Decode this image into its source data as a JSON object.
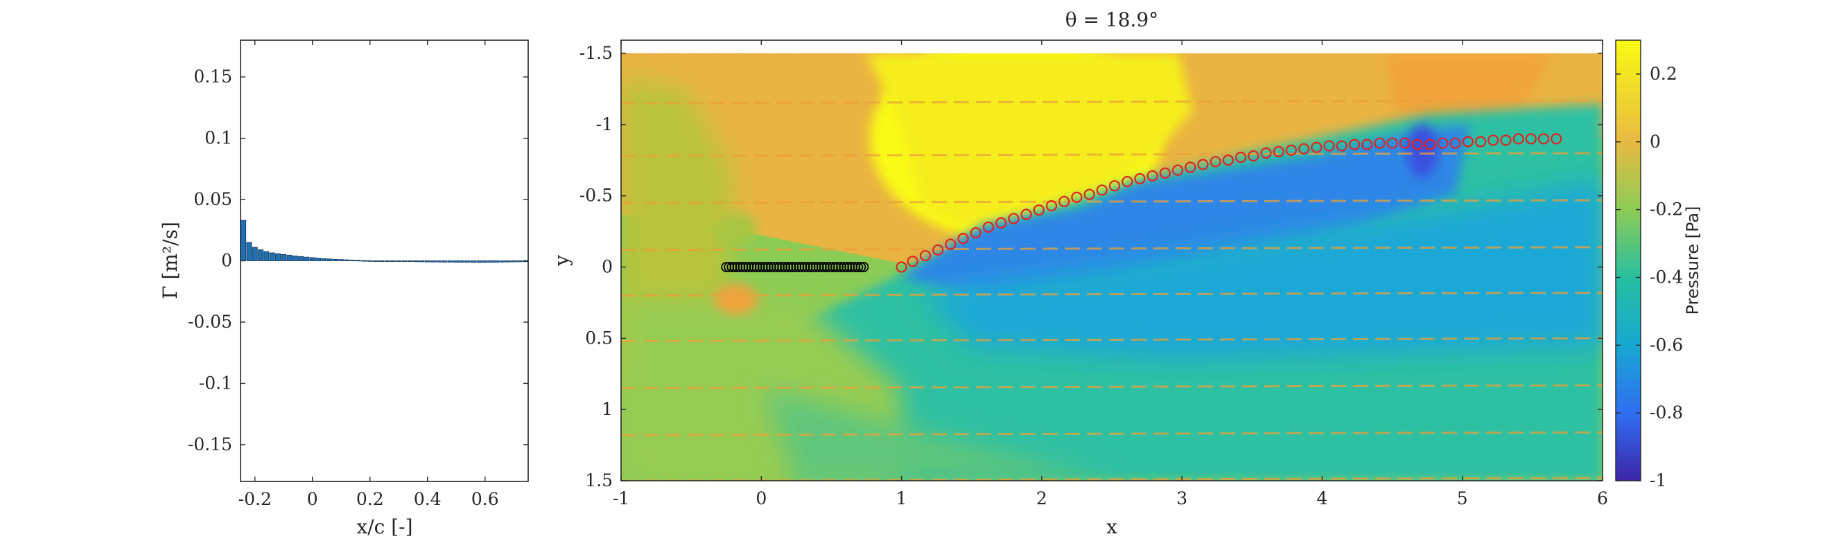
{
  "chart_data": [
    {
      "type": "bar",
      "xlabel": "x/c [-]",
      "ylabel": "Γ [m²/s]",
      "xlim": [
        -0.25,
        0.75
      ],
      "ylim": [
        -0.18,
        0.18
      ],
      "xticks": [
        "-0.2",
        "0",
        "0.2",
        "0.4",
        "0.6"
      ],
      "xtick_values": [
        -0.2,
        0,
        0.2,
        0.4,
        0.6
      ],
      "yticks": [
        "-0.15",
        "-0.1",
        "-0.05",
        "0",
        "0.05",
        "0.1",
        "0.15"
      ],
      "ytick_values": [
        -0.15,
        -0.1,
        -0.05,
        0,
        0.05,
        0.1,
        0.15
      ],
      "bar_color": "#1f6fb3",
      "x": [
        -0.24,
        -0.22,
        -0.2,
        -0.18,
        -0.16,
        -0.14,
        -0.12,
        -0.1,
        -0.08,
        -0.06,
        -0.04,
        -0.02,
        0.0,
        0.02,
        0.04,
        0.06,
        0.08,
        0.1,
        0.12,
        0.14,
        0.16,
        0.18,
        0.2,
        0.22,
        0.24,
        0.26,
        0.28,
        0.3,
        0.32,
        0.34,
        0.36,
        0.38,
        0.4,
        0.42,
        0.44,
        0.46,
        0.48,
        0.5,
        0.52,
        0.54,
        0.56,
        0.58,
        0.6,
        0.62,
        0.64,
        0.66,
        0.68,
        0.7,
        0.72,
        0.74
      ],
      "values": [
        0.033,
        0.015,
        0.011,
        0.009,
        0.0075,
        0.0065,
        0.0058,
        0.0052,
        0.0046,
        0.004,
        0.0035,
        0.003,
        0.0026,
        0.0022,
        0.0018,
        0.0015,
        0.0012,
        0.001,
        0.0008,
        0.0006,
        0.0004,
        0.0002,
        0.0001,
        0.0,
        -0.0001,
        -0.0002,
        -0.0003,
        -0.0004,
        -0.0005,
        -0.0006,
        -0.0007,
        -0.0008,
        -0.0009,
        -0.001,
        -0.001,
        -0.0011,
        -0.0011,
        -0.0012,
        -0.0012,
        -0.0012,
        -0.0013,
        -0.0013,
        -0.0013,
        -0.0012,
        -0.0012,
        -0.0011,
        -0.001,
        -0.0009,
        -0.0008,
        -0.0007
      ]
    },
    {
      "type": "heatmap",
      "title": "θ = 18.9°",
      "xlabel": "x",
      "ylabel": "y",
      "xlim": [
        -1,
        6
      ],
      "ylim": [
        -1.5,
        1.5
      ],
      "y_reversed": true,
      "xticks": [
        "-1",
        "0",
        "1",
        "2",
        "3",
        "4",
        "5",
        "6"
      ],
      "xtick_values": [
        -1,
        0,
        1,
        2,
        3,
        4,
        5,
        6
      ],
      "yticks": [
        "-1.5",
        "-1",
        "-0.5",
        "0",
        "0.5",
        "1",
        "1.5"
      ],
      "ytick_values": [
        -1.5,
        -1,
        -0.5,
        0,
        0.5,
        1,
        1.5
      ],
      "colorbar": {
        "label": "Pressure [Pa]",
        "clim": [
          -1,
          0.3
        ],
        "ticks": [
          "-1",
          "-0.8",
          "-0.6",
          "-0.4",
          "-0.2",
          "0",
          "0.2"
        ],
        "tick_values": [
          -1,
          -0.8,
          -0.6,
          -0.4,
          -0.2,
          0,
          0.2
        ],
        "colors": [
          "#3e26a8",
          "#2f6ef2",
          "#17a8d2",
          "#27bfa0",
          "#8ccc55",
          "#e8ba42",
          "#f9fa14"
        ]
      },
      "plate": {
        "x": [
          -0.25,
          -0.23,
          -0.21,
          -0.19,
          -0.17,
          -0.15,
          -0.13,
          -0.11,
          -0.09,
          -0.07,
          -0.05,
          -0.03,
          -0.01,
          0.01,
          0.03,
          0.05,
          0.07,
          0.09,
          0.11,
          0.13,
          0.15,
          0.17,
          0.19,
          0.21,
          0.23,
          0.25,
          0.27,
          0.29,
          0.31,
          0.33,
          0.35,
          0.37,
          0.39,
          0.41,
          0.43,
          0.45,
          0.47,
          0.49,
          0.51,
          0.53,
          0.55,
          0.57,
          0.59,
          0.61,
          0.63,
          0.65,
          0.67,
          0.69,
          0.71,
          0.73
        ],
        "y": 0,
        "color": "#000000"
      },
      "wake": {
        "color": "#e1221f",
        "x": [
          1.0,
          1.08,
          1.17,
          1.26,
          1.35,
          1.44,
          1.53,
          1.62,
          1.71,
          1.8,
          1.89,
          1.98,
          2.07,
          2.16,
          2.25,
          2.34,
          2.43,
          2.52,
          2.61,
          2.7,
          2.79,
          2.88,
          2.97,
          3.06,
          3.15,
          3.24,
          3.33,
          3.42,
          3.51,
          3.6,
          3.69,
          3.78,
          3.87,
          3.96,
          4.05,
          4.14,
          4.23,
          4.32,
          4.41,
          4.5,
          4.59,
          4.68,
          4.77,
          4.86,
          4.95,
          5.04,
          5.13,
          5.22,
          5.31,
          5.4,
          5.49,
          5.58,
          5.67
        ],
        "y": [
          0.0,
          -0.04,
          -0.08,
          -0.12,
          -0.16,
          -0.2,
          -0.24,
          -0.28,
          -0.31,
          -0.34,
          -0.37,
          -0.4,
          -0.43,
          -0.46,
          -0.49,
          -0.51,
          -0.54,
          -0.57,
          -0.6,
          -0.62,
          -0.64,
          -0.66,
          -0.68,
          -0.7,
          -0.72,
          -0.74,
          -0.75,
          -0.77,
          -0.78,
          -0.8,
          -0.81,
          -0.82,
          -0.83,
          -0.84,
          -0.85,
          -0.85,
          -0.86,
          -0.86,
          -0.87,
          -0.87,
          -0.87,
          -0.86,
          -0.86,
          -0.87,
          -0.87,
          -0.88,
          -0.88,
          -0.89,
          -0.89,
          -0.9,
          -0.9,
          -0.9,
          -0.9
        ]
      }
    }
  ]
}
